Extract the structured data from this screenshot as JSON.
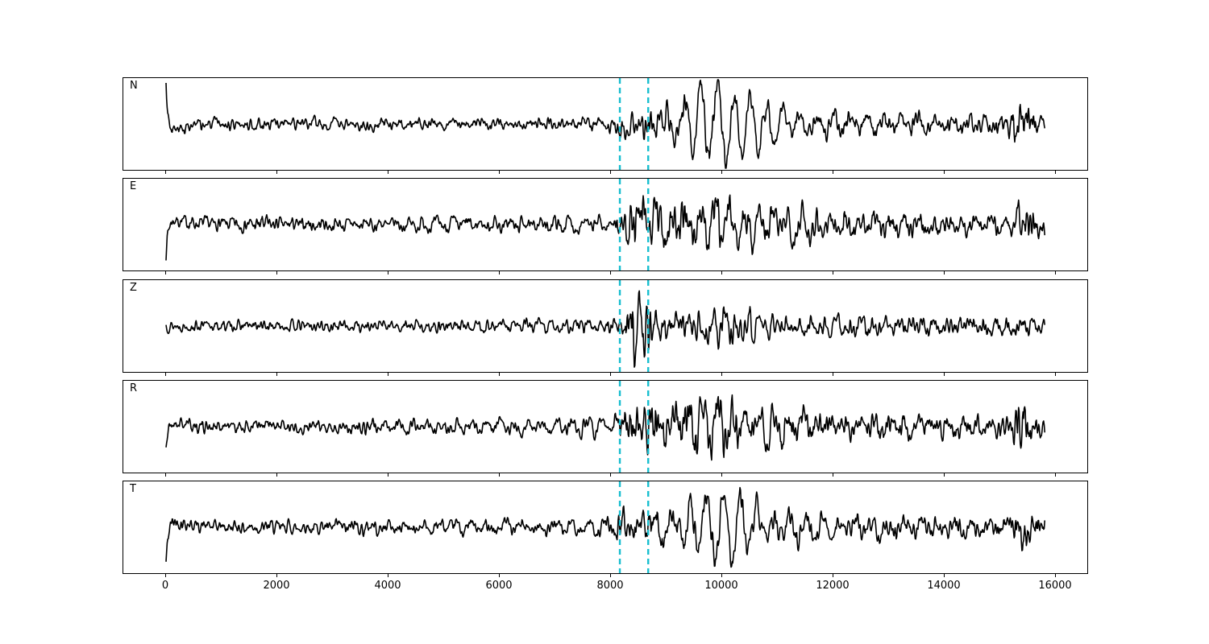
{
  "figure": {
    "background": "#ffffff",
    "axes_color": "#000000"
  },
  "chart_data": {
    "type": "line",
    "title": "",
    "xlabel": "",
    "ylabel": "",
    "grid": false,
    "legend": "none",
    "xlim": [
      -770,
      16600
    ],
    "x_data_range": [
      0,
      15800
    ],
    "sample_step": 10,
    "xticks": [
      0,
      2000,
      4000,
      6000,
      8000,
      10000,
      12000,
      14000,
      16000
    ],
    "xtick_labels": [
      "0",
      "2000",
      "4000",
      "6000",
      "8000",
      "10000",
      "12000",
      "14000",
      "16000"
    ],
    "line_color": "#000000",
    "line_width": 1.6,
    "pick_lines": {
      "x_values": [
        8160,
        8670
      ],
      "color": "#17becf",
      "style": "dashed"
    },
    "series": [
      {
        "name": "N",
        "seed": 3,
        "lf_period": 300,
        "onset_spike": 46,
        "hf_env": [
          [
            0,
            8
          ],
          [
            7900,
            8
          ],
          [
            8160,
            16
          ],
          [
            8600,
            20
          ],
          [
            9200,
            22
          ],
          [
            10500,
            18
          ],
          [
            11500,
            13
          ],
          [
            15100,
            12
          ],
          [
            15300,
            34
          ],
          [
            15500,
            26
          ],
          [
            15700,
            12
          ],
          [
            15800,
            8
          ]
        ],
        "lf_env": [
          [
            0,
            0
          ],
          [
            8600,
            2
          ],
          [
            9200,
            18
          ],
          [
            9600,
            42
          ],
          [
            10300,
            40
          ],
          [
            10900,
            18
          ],
          [
            12000,
            9
          ],
          [
            14000,
            6
          ],
          [
            15800,
            4
          ]
        ]
      },
      {
        "name": "E",
        "seed": 7,
        "lf_period": 260,
        "onset_spike": -32,
        "hf_env": [
          [
            0,
            9
          ],
          [
            1600,
            9
          ],
          [
            1750,
            16
          ],
          [
            1900,
            9
          ],
          [
            8050,
            9
          ],
          [
            8250,
            32
          ],
          [
            8800,
            34
          ],
          [
            9600,
            28
          ],
          [
            10800,
            22
          ],
          [
            12500,
            16
          ],
          [
            15150,
            13
          ],
          [
            15400,
            34
          ],
          [
            15650,
            16
          ],
          [
            15800,
            10
          ]
        ],
        "lf_env": [
          [
            0,
            0
          ],
          [
            8700,
            6
          ],
          [
            9700,
            26
          ],
          [
            10600,
            18
          ],
          [
            12000,
            8
          ],
          [
            15800,
            4
          ]
        ]
      },
      {
        "name": "Z",
        "seed": 13,
        "lf_period": 220,
        "onset_spike": 0,
        "hf_env": [
          [
            0,
            7
          ],
          [
            6800,
            8
          ],
          [
            8100,
            10
          ],
          [
            8280,
            22
          ],
          [
            8430,
            48
          ],
          [
            8650,
            38
          ],
          [
            8900,
            18
          ],
          [
            9600,
            16
          ],
          [
            10100,
            22
          ],
          [
            11000,
            14
          ],
          [
            13000,
            11
          ],
          [
            15500,
            11
          ],
          [
            15800,
            7
          ]
        ],
        "lf_env": [
          [
            0,
            0
          ],
          [
            9000,
            4
          ],
          [
            10000,
            12
          ],
          [
            12000,
            5
          ],
          [
            15800,
            3
          ]
        ]
      },
      {
        "name": "R",
        "seed": 21,
        "lf_period": 260,
        "onset_spike": -24,
        "hf_env": [
          [
            0,
            9
          ],
          [
            8050,
            9
          ],
          [
            8250,
            30
          ],
          [
            8800,
            36
          ],
          [
            9600,
            32
          ],
          [
            10600,
            26
          ],
          [
            12000,
            17
          ],
          [
            15150,
            13
          ],
          [
            15400,
            40
          ],
          [
            15650,
            18
          ],
          [
            15800,
            9
          ]
        ],
        "lf_env": [
          [
            0,
            0
          ],
          [
            8800,
            8
          ],
          [
            9700,
            30
          ],
          [
            10700,
            18
          ],
          [
            12000,
            7
          ],
          [
            15800,
            4
          ]
        ]
      },
      {
        "name": "T",
        "seed": 42,
        "lf_period": 300,
        "onset_spike": -46,
        "hf_env": [
          [
            0,
            11
          ],
          [
            500,
            9
          ],
          [
            8000,
            9
          ],
          [
            8160,
            20
          ],
          [
            8700,
            26
          ],
          [
            9200,
            22
          ],
          [
            10800,
            17
          ],
          [
            12500,
            13
          ],
          [
            15150,
            12
          ],
          [
            15400,
            36
          ],
          [
            15650,
            15
          ],
          [
            15800,
            9
          ]
        ],
        "lf_env": [
          [
            0,
            0
          ],
          [
            9100,
            8
          ],
          [
            9600,
            36
          ],
          [
            10200,
            42
          ],
          [
            10900,
            14
          ],
          [
            12500,
            6
          ],
          [
            15800,
            4
          ]
        ]
      }
    ]
  }
}
